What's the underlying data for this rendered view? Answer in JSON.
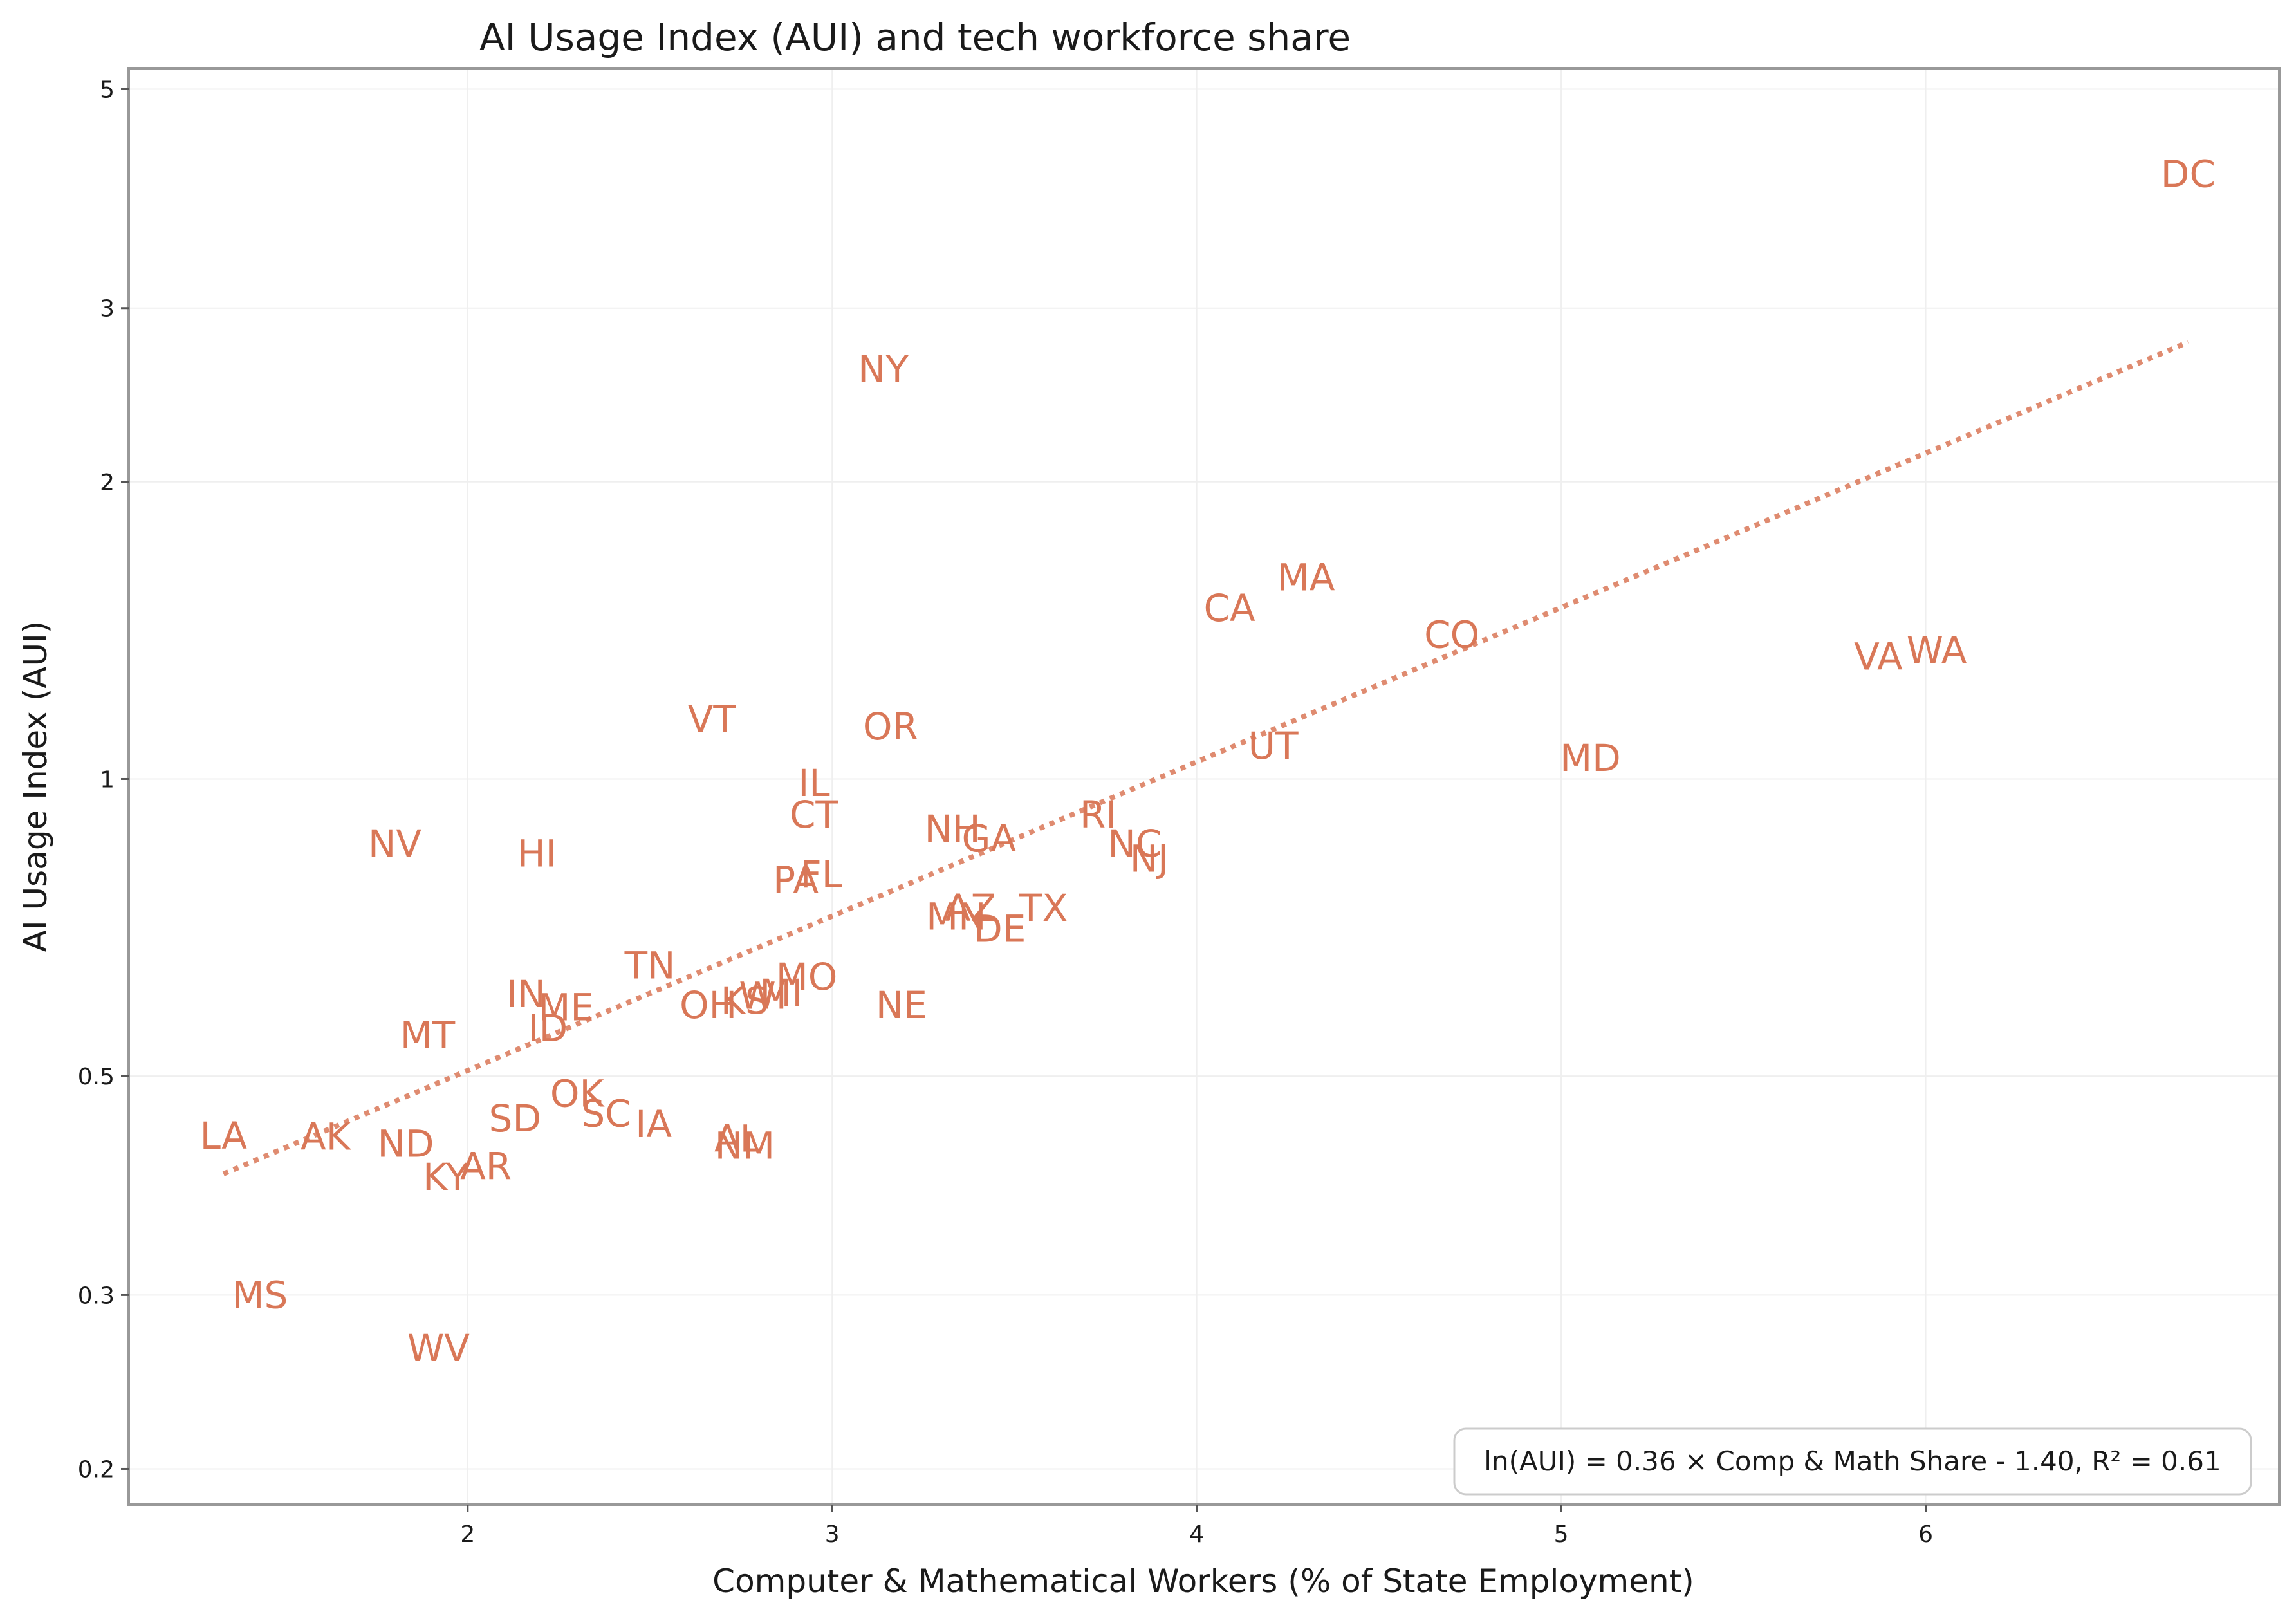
{
  "chart_data": {
    "type": "scatter",
    "title": "AI Usage Index (AUI) and tech workforce share",
    "xlabel": "Computer & Mathematical Workers (% of State Employment)",
    "ylabel": "AI Usage Index (AUI)",
    "xlim": [
      1.07,
      6.97
    ],
    "ylim": [
      0.184,
      5.25
    ],
    "yscale": "log",
    "x_ticks": [
      {
        "value": 2,
        "label": "2"
      },
      {
        "value": 3,
        "label": "3"
      },
      {
        "value": 4,
        "label": "4"
      },
      {
        "value": 5,
        "label": "5"
      },
      {
        "value": 6,
        "label": "6"
      }
    ],
    "y_ticks": [
      {
        "value": 0.2,
        "label": "0.2"
      },
      {
        "value": 0.3,
        "label": "0.3"
      },
      {
        "value": 0.5,
        "label": "0.5"
      },
      {
        "value": 1,
        "label": "1"
      },
      {
        "value": 2,
        "label": "2"
      },
      {
        "value": 3,
        "label": "3"
      },
      {
        "value": 5,
        "label": "5"
      }
    ],
    "grid": true,
    "point_color": "#D97757",
    "points": [
      {
        "label": "DC",
        "x": 6.72,
        "y": 4.1
      },
      {
        "label": "NY",
        "x": 3.14,
        "y": 2.6
      },
      {
        "label": "MA",
        "x": 4.3,
        "y": 1.6
      },
      {
        "label": "CA",
        "x": 4.09,
        "y": 1.49
      },
      {
        "label": "CO",
        "x": 4.7,
        "y": 1.4
      },
      {
        "label": "WA",
        "x": 6.03,
        "y": 1.35
      },
      {
        "label": "VA",
        "x": 5.87,
        "y": 1.33
      },
      {
        "label": "VT",
        "x": 2.67,
        "y": 1.15
      },
      {
        "label": "OR",
        "x": 3.16,
        "y": 1.13
      },
      {
        "label": "UT",
        "x": 4.21,
        "y": 1.08
      },
      {
        "label": "MD",
        "x": 5.08,
        "y": 1.05
      },
      {
        "label": "IL",
        "x": 2.95,
        "y": 0.99
      },
      {
        "label": "CT",
        "x": 2.95,
        "y": 0.92
      },
      {
        "label": "NH",
        "x": 3.33,
        "y": 0.89
      },
      {
        "label": "RI",
        "x": 3.73,
        "y": 0.92
      },
      {
        "label": "GA",
        "x": 3.43,
        "y": 0.87
      },
      {
        "label": "NC",
        "x": 3.83,
        "y": 0.86
      },
      {
        "label": "NJ",
        "x": 3.87,
        "y": 0.83
      },
      {
        "label": "NV",
        "x": 1.8,
        "y": 0.86
      },
      {
        "label": "HI",
        "x": 2.19,
        "y": 0.84
      },
      {
        "label": "FL",
        "x": 2.97,
        "y": 0.8
      },
      {
        "label": "PA",
        "x": 2.9,
        "y": 0.79
      },
      {
        "label": "TX",
        "x": 3.58,
        "y": 0.74
      },
      {
        "label": "AZ",
        "x": 3.38,
        "y": 0.74
      },
      {
        "label": "MN",
        "x": 3.34,
        "y": 0.725
      },
      {
        "label": "DE",
        "x": 3.46,
        "y": 0.705
      },
      {
        "label": "TN",
        "x": 2.5,
        "y": 0.647
      },
      {
        "label": "MO",
        "x": 2.93,
        "y": 0.63
      },
      {
        "label": "MI",
        "x": 2.86,
        "y": 0.607
      },
      {
        "label": "WI",
        "x": 2.81,
        "y": 0.603
      },
      {
        "label": "KS",
        "x": 2.76,
        "y": 0.596
      },
      {
        "label": "OH",
        "x": 2.66,
        "y": 0.59
      },
      {
        "label": "NE",
        "x": 3.19,
        "y": 0.59
      },
      {
        "label": "IN",
        "x": 2.16,
        "y": 0.605
      },
      {
        "label": "ME",
        "x": 2.27,
        "y": 0.587
      },
      {
        "label": "ID",
        "x": 2.22,
        "y": 0.559
      },
      {
        "label": "MT",
        "x": 1.89,
        "y": 0.55
      },
      {
        "label": "OK",
        "x": 2.3,
        "y": 0.48
      },
      {
        "label": "SC",
        "x": 2.38,
        "y": 0.458
      },
      {
        "label": "IA",
        "x": 2.51,
        "y": 0.447
      },
      {
        "label": "SD",
        "x": 2.13,
        "y": 0.453
      },
      {
        "label": "AL",
        "x": 2.74,
        "y": 0.432
      },
      {
        "label": "NM",
        "x": 2.76,
        "y": 0.425
      },
      {
        "label": "LA",
        "x": 1.33,
        "y": 0.435
      },
      {
        "label": "AK",
        "x": 1.61,
        "y": 0.434
      },
      {
        "label": "ND",
        "x": 1.83,
        "y": 0.427
      },
      {
        "label": "AR",
        "x": 2.05,
        "y": 0.405
      },
      {
        "label": "KY",
        "x": 1.94,
        "y": 0.395
      },
      {
        "label": "MS",
        "x": 1.43,
        "y": 0.3
      },
      {
        "label": "WV",
        "x": 1.92,
        "y": 0.265
      }
    ],
    "fit": {
      "slope": 0.36,
      "intercept": -1.4,
      "x_range": [
        1.33,
        6.72
      ],
      "style": "dotted",
      "color": "#D97757"
    },
    "annotations": [
      {
        "text": "ln(AUI) = 0.36 × Comp & Math Share - 1.40, R² = 0.61",
        "position": "bottom-right"
      }
    ]
  }
}
